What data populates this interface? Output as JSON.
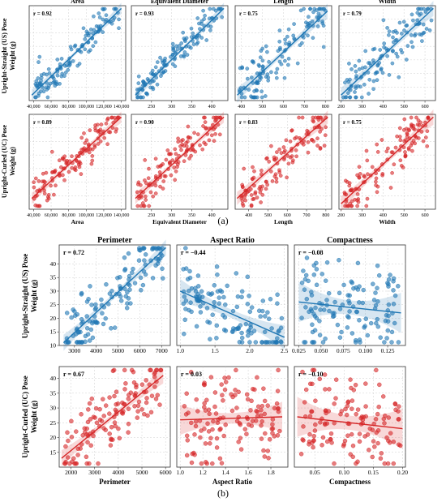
{
  "figure": {
    "label_a": "(a)",
    "label_b": "(b)"
  },
  "rows": {
    "a_us": [
      "Upright-Straight (US) Pose",
      "Weight (g)"
    ],
    "a_uc": [
      "Upright-Curled (UC) Pose",
      "Weight (g)"
    ],
    "b_us": [
      "Upright-Straight (US) Pose",
      "Weight (g)"
    ],
    "b_uc": [
      "Upright-Curled (UC) Pose",
      "Weight (g)"
    ]
  },
  "colors": {
    "us": "#1f77b4",
    "uc": "#d62728",
    "grid": "#cfcfcf",
    "panel_border": "#333333"
  },
  "chart_data": [
    {
      "id": "a-us-area",
      "type": "scatter",
      "group": "a",
      "row": "us",
      "title": "Area",
      "r_label": "r = 0.92",
      "xlim": [
        35000,
        145000
      ],
      "ylim": [
        10,
        45
      ],
      "xticks": [
        40000,
        60000,
        80000,
        100000,
        120000,
        140000
      ],
      "xtick_labels": [
        "40,000",
        "60,000",
        "80,000",
        "100,000",
        "120,000",
        "140,000"
      ],
      "yticks": [],
      "ytick_labels": [],
      "fit": [
        [
          38000,
          12
        ],
        [
          140000,
          44
        ]
      ],
      "band": 0.06,
      "npts": 130,
      "seed": 11,
      "scatter": 3.2,
      "xlabel": ""
    },
    {
      "id": "a-us-eqd",
      "type": "scatter",
      "group": "a",
      "row": "us",
      "title": "Equivalent Diameter",
      "r_label": "r = 0.93",
      "xlim": [
        200,
        440
      ],
      "ylim": [
        10,
        45
      ],
      "xticks": [
        250,
        300,
        350,
        400
      ],
      "xtick_labels": [
        "250",
        "300",
        "350",
        "400"
      ],
      "yticks": [],
      "ytick_labels": [],
      "fit": [
        [
          210,
          12
        ],
        [
          430,
          44
        ]
      ],
      "band": 0.06,
      "npts": 130,
      "seed": 12,
      "scatter": 3.0,
      "xlabel": ""
    },
    {
      "id": "a-us-length",
      "type": "scatter",
      "group": "a",
      "row": "us",
      "title": "Length",
      "r_label": "r = 0.75",
      "xlim": [
        370,
        830
      ],
      "ylim": [
        10,
        45
      ],
      "xticks": [
        400,
        500,
        600,
        700,
        800
      ],
      "xtick_labels": [
        "400",
        "500",
        "600",
        "700",
        "800"
      ],
      "yticks": [],
      "ytick_labels": [],
      "fit": [
        [
          380,
          12
        ],
        [
          810,
          43
        ]
      ],
      "band": 0.08,
      "npts": 130,
      "seed": 13,
      "scatter": 5.0,
      "xlabel": ""
    },
    {
      "id": "a-us-width",
      "type": "scatter",
      "group": "a",
      "row": "us",
      "title": "Width",
      "r_label": "r = 0.79",
      "xlim": [
        190,
        650
      ],
      "ylim": [
        10,
        45
      ],
      "xticks": [
        200,
        300,
        400,
        500,
        600
      ],
      "xtick_labels": [
        "200",
        "300",
        "400",
        "500",
        "600"
      ],
      "yticks": [],
      "ytick_labels": [],
      "fit": [
        [
          200,
          12
        ],
        [
          640,
          44
        ]
      ],
      "band": 0.08,
      "npts": 130,
      "seed": 14,
      "scatter": 4.6,
      "xlabel": ""
    },
    {
      "id": "a-uc-area",
      "type": "scatter",
      "group": "a",
      "row": "uc",
      "title": "",
      "r_label": "r = 0.89",
      "xlim": [
        35000,
        145000
      ],
      "ylim": [
        10,
        45
      ],
      "xticks": [
        40000,
        60000,
        80000,
        100000,
        120000,
        140000
      ],
      "xtick_labels": [
        "40,000",
        "60,000",
        "80,000",
        "100,000",
        "120,000",
        "140,000"
      ],
      "yticks": [],
      "ytick_labels": [],
      "fit": [
        [
          38000,
          14
        ],
        [
          140000,
          44
        ]
      ],
      "band": 0.06,
      "npts": 130,
      "seed": 21,
      "scatter": 3.6,
      "xlabel": "Area"
    },
    {
      "id": "a-uc-eqd",
      "type": "scatter",
      "group": "a",
      "row": "uc",
      "title": "",
      "r_label": "r = 0.90",
      "xlim": [
        200,
        440
      ],
      "ylim": [
        10,
        45
      ],
      "xticks": [
        250,
        300,
        350,
        400
      ],
      "xtick_labels": [
        "250",
        "300",
        "350",
        "400"
      ],
      "yticks": [],
      "ytick_labels": [],
      "fit": [
        [
          210,
          14
        ],
        [
          430,
          44
        ]
      ],
      "band": 0.06,
      "npts": 130,
      "seed": 22,
      "scatter": 3.4,
      "xlabel": "Equivalent Diameter"
    },
    {
      "id": "a-uc-length",
      "type": "scatter",
      "group": "a",
      "row": "uc",
      "title": "",
      "r_label": "r = 0.83",
      "xlim": [
        330,
        830
      ],
      "ylim": [
        10,
        45
      ],
      "xticks": [
        400,
        500,
        600,
        700,
        800
      ],
      "xtick_labels": [
        "400",
        "500",
        "600",
        "700",
        "800"
      ],
      "yticks": [],
      "ytick_labels": [],
      "fit": [
        [
          340,
          14
        ],
        [
          810,
          44
        ]
      ],
      "band": 0.07,
      "npts": 130,
      "seed": 23,
      "scatter": 4.2,
      "xlabel": "Length"
    },
    {
      "id": "a-uc-width",
      "type": "scatter",
      "group": "a",
      "row": "uc",
      "title": "",
      "r_label": "r = 0.75",
      "xlim": [
        190,
        650
      ],
      "ylim": [
        10,
        45
      ],
      "xticks": [
        200,
        300,
        400,
        500,
        600
      ],
      "xtick_labels": [
        "200",
        "300",
        "400",
        "500",
        "600"
      ],
      "yticks": [],
      "ytick_labels": [],
      "fit": [
        [
          200,
          12
        ],
        [
          640,
          44
        ]
      ],
      "band": 0.08,
      "npts": 130,
      "seed": 24,
      "scatter": 5.0,
      "xlabel": "Width"
    },
    {
      "id": "b-us-perimeter",
      "type": "scatter",
      "group": "b",
      "row": "us",
      "title": "Perimeter",
      "r_label": "r = 0.72",
      "xlim": [
        2300,
        7400
      ],
      "ylim": [
        10,
        47
      ],
      "xticks": [
        3000,
        4000,
        5000,
        6000,
        7000
      ],
      "xtick_labels": [
        "3000",
        "4000",
        "5000",
        "6000",
        "7000"
      ],
      "yticks": [
        10,
        15,
        20,
        25,
        30,
        35,
        40
      ],
      "ytick_labels": [
        "10",
        "15",
        "20",
        "25",
        "30",
        "35",
        "40"
      ],
      "fit": [
        [
          2500,
          11
        ],
        [
          7200,
          46
        ]
      ],
      "band": 0.08,
      "npts": 130,
      "seed": 31,
      "scatter": 5.6,
      "xlabel": ""
    },
    {
      "id": "b-us-aspect",
      "type": "scatter",
      "group": "b",
      "row": "us",
      "title": "Aspect Ratio",
      "r_label": "r = −0.44",
      "xlim": [
        0.95,
        2.55
      ],
      "ylim": [
        10,
        47
      ],
      "xticks": [
        1.0,
        1.5,
        2.0,
        2.5
      ],
      "xtick_labels": [
        "1.0",
        "1.5",
        "2.0",
        "2.5"
      ],
      "yticks": [],
      "ytick_labels": [],
      "fit": [
        [
          1.0,
          30
        ],
        [
          2.5,
          13
        ]
      ],
      "band": 0.12,
      "npts": 130,
      "seed": 32,
      "scatter": 8.0,
      "xlabel": ""
    },
    {
      "id": "b-us-compactness",
      "type": "scatter",
      "group": "b",
      "row": "us",
      "title": "Compactness",
      "r_label": "r = −0.08",
      "xlim": [
        0.02,
        0.145
      ],
      "ylim": [
        10,
        47
      ],
      "xticks": [
        0.025,
        0.05,
        0.075,
        0.1,
        0.125
      ],
      "xtick_labels": [
        "0.025",
        "0.050",
        "0.075",
        "0.100",
        "0.125"
      ],
      "yticks": [],
      "ytick_labels": [],
      "fit": [
        [
          0.025,
          26
        ],
        [
          0.14,
          22
        ]
      ],
      "band": 0.2,
      "npts": 130,
      "seed": 33,
      "scatter": 9.0,
      "xlabel": ""
    },
    {
      "id": "b-uc-perimeter",
      "type": "scatter",
      "group": "b",
      "row": "uc",
      "title": "",
      "r_label": "r = 0.67",
      "xlim": [
        1500,
        6200
      ],
      "ylim": [
        10,
        44
      ],
      "xticks": [
        2000,
        3000,
        4000,
        5000,
        6000
      ],
      "xtick_labels": [
        "2000",
        "3000",
        "4000",
        "5000",
        "6000"
      ],
      "yticks": [
        15,
        20,
        25,
        30,
        35,
        40
      ],
      "ytick_labels": [
        "15",
        "20",
        "25",
        "30",
        "35",
        "40"
      ],
      "fit": [
        [
          1600,
          13
        ],
        [
          5900,
          41
        ]
      ],
      "band": 0.08,
      "npts": 130,
      "seed": 41,
      "scatter": 6.0,
      "xlabel": "Perimeter"
    },
    {
      "id": "b-uc-aspect",
      "type": "scatter",
      "group": "b",
      "row": "uc",
      "title": "",
      "r_label": "r = 0.03",
      "xlim": [
        0.97,
        1.95
      ],
      "ylim": [
        10,
        44
      ],
      "xticks": [
        1.0,
        1.2,
        1.4,
        1.6,
        1.8
      ],
      "xtick_labels": [
        "1.0",
        "1.2",
        "1.4",
        "1.6",
        "1.8"
      ],
      "yticks": [],
      "ytick_labels": [],
      "fit": [
        [
          1.0,
          26
        ],
        [
          1.9,
          27
        ]
      ],
      "band": 0.15,
      "npts": 130,
      "seed": 42,
      "scatter": 8.5,
      "xlabel": "Aspect Ratio"
    },
    {
      "id": "b-uc-compactness",
      "type": "scatter",
      "group": "b",
      "row": "uc",
      "title": "",
      "r_label": "r = −0.10",
      "xlim": [
        0.015,
        0.205
      ],
      "ylim": [
        10,
        44
      ],
      "xticks": [
        0.05,
        0.1,
        0.15,
        0.2
      ],
      "xtick_labels": [
        "0.05",
        "0.10",
        "0.15",
        "0.20"
      ],
      "yticks": [],
      "ytick_labels": [],
      "fit": [
        [
          0.02,
          27
        ],
        [
          0.2,
          23
        ]
      ],
      "band": 0.2,
      "npts": 130,
      "seed": 43,
      "scatter": 8.5,
      "xlabel": "Compactness"
    }
  ]
}
